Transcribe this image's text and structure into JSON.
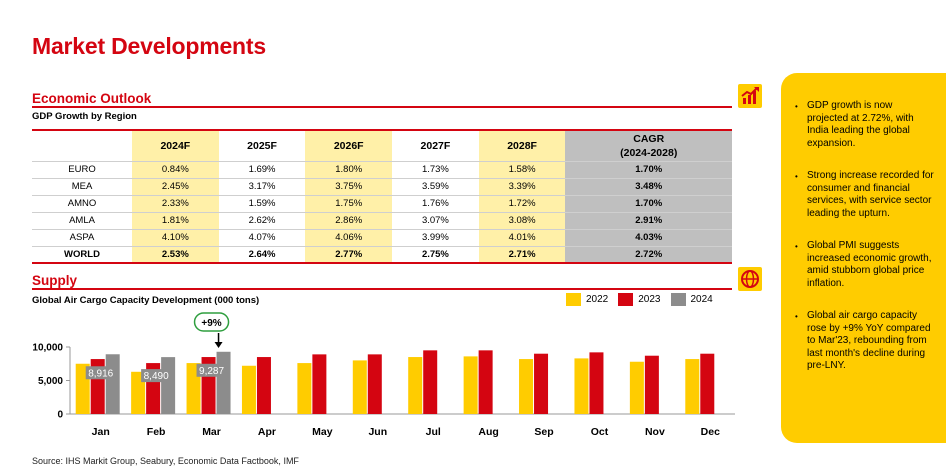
{
  "page_title": "Market Developments",
  "economic_outlook": {
    "heading": "Economic Outlook",
    "subtitle": "GDP Growth by Region",
    "icon": "chart-icon",
    "columns": [
      "2024F",
      "2025F",
      "2026F",
      "2027F",
      "2028F"
    ],
    "cagr_header_line1": "CAGR",
    "cagr_header_line2": "(2024-2028)",
    "rows": [
      {
        "region": "EURO",
        "values": [
          "0.84%",
          "1.69%",
          "1.80%",
          "1.73%",
          "1.58%"
        ],
        "cagr": "1.70%"
      },
      {
        "region": "MEA",
        "values": [
          "2.45%",
          "3.17%",
          "3.75%",
          "3.59%",
          "3.39%"
        ],
        "cagr": "3.48%"
      },
      {
        "region": "AMNO",
        "values": [
          "2.33%",
          "1.59%",
          "1.75%",
          "1.76%",
          "1.72%"
        ],
        "cagr": "1.70%"
      },
      {
        "region": "AMLA",
        "values": [
          "1.81%",
          "2.62%",
          "2.86%",
          "3.07%",
          "3.08%"
        ],
        "cagr": "2.91%"
      },
      {
        "region": "ASPA",
        "values": [
          "4.10%",
          "4.07%",
          "4.06%",
          "3.99%",
          "4.01%"
        ],
        "cagr": "4.03%"
      },
      {
        "region": "WORLD",
        "values": [
          "2.53%",
          "2.64%",
          "2.77%",
          "2.75%",
          "2.71%"
        ],
        "cagr": "2.72%"
      }
    ]
  },
  "supply": {
    "heading": "Supply",
    "icon": "globe-icon",
    "chart_title": "Global Air Cargo Capacity Development (000 tons)",
    "callout": "+9%"
  },
  "chart_data": {
    "type": "bar",
    "title": "Global Air Cargo Capacity Development (000 tons)",
    "categories": [
      "Jan",
      "Feb",
      "Mar",
      "Apr",
      "May",
      "Jun",
      "Jul",
      "Aug",
      "Sep",
      "Oct",
      "Nov",
      "Dec"
    ],
    "series": [
      {
        "name": "2022",
        "color": "#ffcc00",
        "values": [
          7500,
          6300,
          7600,
          7200,
          7600,
          8000,
          8500,
          8600,
          8200,
          8300,
          7800,
          8200
        ]
      },
      {
        "name": "2023",
        "color": "#d40511",
        "values": [
          8200,
          7600,
          8500,
          8500,
          8900,
          8900,
          9500,
          9500,
          9000,
          9200,
          8700,
          9000
        ]
      },
      {
        "name": "2024",
        "color": "#8c8c8c",
        "values": [
          8916,
          8490,
          9287,
          null,
          null,
          null,
          null,
          null,
          null,
          null,
          null,
          null
        ]
      }
    ],
    "data_labels_2024": [
      "8,916",
      "8,490",
      "9,287"
    ],
    "yticks": [
      0,
      5000,
      10000
    ],
    "ytick_labels": [
      "0",
      "5,000",
      "10,000"
    ],
    "ylim": [
      0,
      10000
    ],
    "legend_position": "top-right",
    "grid": false
  },
  "side_panel": {
    "bullet": "•",
    "items": [
      "GDP growth is now projected at 2.72%, with India leading the global expansion.",
      "Strong increase recorded for consumer and financial services, with service sector leading the upturn.",
      "Global PMI suggests increased economic growth, amid stubborn global price inflation.",
      "Global air cargo capacity rose by +9% YoY compared to Mar'23, rebounding from last month's decline during pre-LNY."
    ]
  },
  "source": "Source: IHS Markit Group, Seabury, Economic Data Factbook, IMF"
}
